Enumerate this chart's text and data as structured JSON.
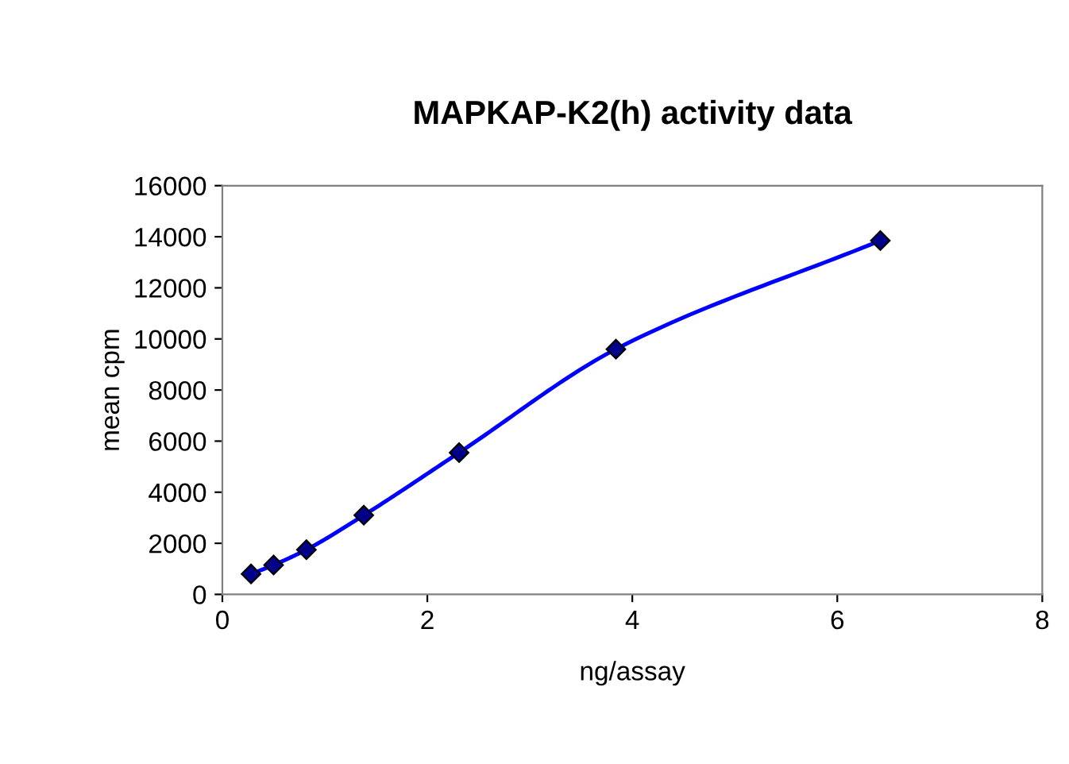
{
  "chart_data": {
    "type": "line",
    "title": "MAPKAP-K2(h) activity data",
    "xlabel": "ng/assay",
    "ylabel": "mean cpm",
    "x": [
      0.28,
      0.5,
      0.82,
      1.38,
      2.31,
      3.84,
      6.42
    ],
    "series": [
      {
        "color": "#0000ff",
        "values": [
          800,
          1150,
          1750,
          3100,
          5550,
          9600,
          13850
        ]
      }
    ],
    "xlim": [
      0,
      8
    ],
    "xticks": [
      0,
      2,
      4,
      6,
      8
    ],
    "ylim": [
      0,
      16000
    ],
    "yticks": [
      0,
      2000,
      4000,
      6000,
      8000,
      10000,
      12000,
      14000,
      16000
    ],
    "grid": false,
    "legend": false,
    "marker": "diamond",
    "line_style": "solid"
  }
}
